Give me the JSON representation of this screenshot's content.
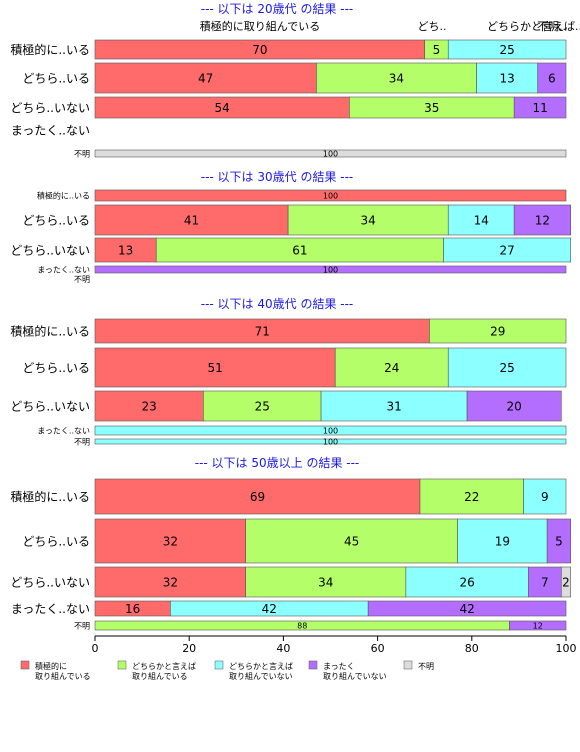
{
  "chart_data": {
    "type": "bar",
    "orientation": "horizontal",
    "stacked": "percent",
    "xlim": [
      0,
      100
    ],
    "x_ticks": [
      0,
      20,
      40,
      60,
      80,
      100
    ],
    "legend": {
      "position": "bottom",
      "items": [
        {
          "label": "積極的に\n取り組んでいる",
          "color": "#ff6b6b"
        },
        {
          "label": "どちらかと言えば\n取り組んでいる",
          "color": "#b4ff69"
        },
        {
          "label": "どちらかと言えば\n取り組んでいない",
          "color": "#8cffff"
        },
        {
          "label": "まったく\n取り組んでいない",
          "color": "#b46eff"
        },
        {
          "label": "不明",
          "color": "#dcdcdc"
        }
      ]
    },
    "panels": [
      {
        "title": "--- 以下は 20歳代 の結果 ---",
        "header_labels": [
          "積極的に取り組んでいる",
          "どち..",
          "どちらかと言えば..",
          "不明.."
        ],
        "rows": [
          {
            "label": "積極的に..いる",
            "values": [
              70,
              5,
              25,
              0,
              0
            ]
          },
          {
            "label": "どちら..いる",
            "values": [
              47,
              34,
              13,
              6,
              0
            ]
          },
          {
            "label": "どちら..いない",
            "values": [
              54,
              35,
              0,
              11,
              0
            ]
          },
          {
            "label": "まったく..ない",
            "values": [
              0,
              0,
              0,
              0,
              0
            ]
          },
          {
            "label": "不明",
            "values": [
              0,
              0,
              0,
              0,
              100
            ]
          }
        ]
      },
      {
        "title": "--- 以下は 30歳代 の結果 ---",
        "rows": [
          {
            "label": "積極的に..いる",
            "values": [
              100,
              0,
              0,
              0,
              0
            ]
          },
          {
            "label": "どちら..いる",
            "values": [
              41,
              34,
              14,
              12,
              0
            ]
          },
          {
            "label": "どちら..いない",
            "values": [
              13,
              61,
              27,
              0,
              0
            ]
          },
          {
            "label": "まったく..ない",
            "values": [
              0,
              0,
              0,
              100,
              0
            ]
          },
          {
            "label": "不明",
            "values": [
              0,
              0,
              0,
              0,
              0
            ]
          }
        ]
      },
      {
        "title": "--- 以下は 40歳代 の結果 ---",
        "rows": [
          {
            "label": "積極的に..いる",
            "values": [
              71,
              29,
              0,
              0,
              0
            ]
          },
          {
            "label": "どちら..いる",
            "values": [
              51,
              24,
              25,
              0,
              0
            ]
          },
          {
            "label": "どちら..いない",
            "values": [
              23,
              25,
              31,
              20,
              0
            ]
          },
          {
            "label": "まったく..ない",
            "values": [
              0,
              0,
              100,
              0,
              0
            ]
          },
          {
            "label": "不明",
            "values": [
              0,
              0,
              100,
              0,
              0
            ]
          }
        ]
      },
      {
        "title": "--- 以下は 50歳以上 の結果 ---",
        "rows": [
          {
            "label": "積極的に..いる",
            "values": [
              69,
              22,
              9,
              0,
              0
            ]
          },
          {
            "label": "どちら..いる",
            "values": [
              32,
              45,
              19,
              5,
              0
            ]
          },
          {
            "label": "どちら..いない",
            "values": [
              32,
              34,
              26,
              7,
              2
            ]
          },
          {
            "label": "まったく..ない",
            "values": [
              16,
              0,
              42,
              42,
              0
            ]
          },
          {
            "label": "不明",
            "values": [
              0,
              88,
              0,
              12,
              0
            ]
          }
        ]
      }
    ]
  }
}
